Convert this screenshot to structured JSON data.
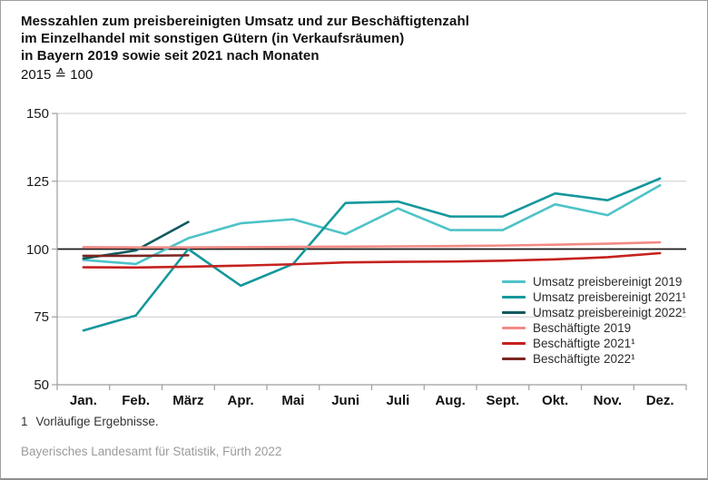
{
  "header": {
    "title_line1": "Messzahlen zum preisbereinigten Umsatz und zur Beschäftigtenzahl",
    "title_line2": "im Einzelhandel mit sonstigen Gütern (in Verkaufsräumen)",
    "title_line3": "in Bayern 2019 sowie seit 2021 nach Monaten",
    "subtitle": "2015 ≙ 100"
  },
  "chart_data": {
    "type": "line",
    "categories": [
      "Jan.",
      "Feb.",
      "März",
      "Apr.",
      "Mai",
      "Juni",
      "Juli",
      "Aug.",
      "Sept.",
      "Okt.",
      "Nov.",
      "Dez."
    ],
    "series": [
      {
        "name": "Umsatz preisbereinigt 2019",
        "color": "#4ec3c7",
        "values": [
          96,
          94.5,
          104,
          109.5,
          111,
          105.5,
          115,
          107,
          107,
          116.5,
          112.5,
          123.5
        ]
      },
      {
        "name": "Umsatz preisbereinigt 2021¹",
        "color": "#14989c",
        "values": [
          70,
          75.5,
          100,
          86.5,
          94.5,
          117,
          117.5,
          112,
          112,
          120.5,
          118,
          126
        ]
      },
      {
        "name": "Umsatz preisbereinigt 2022¹",
        "color": "#0f5a60",
        "values": [
          96.5,
          99.5,
          110
        ]
      },
      {
        "name": "Beschäftigte 2019",
        "color": "#f28b85",
        "values": [
          100.7,
          100.6,
          100.6,
          100.7,
          100.8,
          100.9,
          101,
          101.1,
          101.3,
          101.6,
          102,
          102.5
        ]
      },
      {
        "name": "Beschäftigte 2021¹",
        "color": "#c5211f",
        "values": [
          93.3,
          93.2,
          93.5,
          93.9,
          94.4,
          95.1,
          95.3,
          95.4,
          95.7,
          96.2,
          97,
          98.5
        ]
      },
      {
        "name": "Beschäftigte 2022¹",
        "color": "#7c2622",
        "values": [
          97.5,
          97.5,
          97.7
        ]
      }
    ],
    "title": "Messzahlen zum preisbereinigten Umsatz und zur Beschäftigtenzahl im Einzelhandel mit sonstigen Gütern (in Verkaufsräumen) in Bayern 2019 sowie seit 2021 nach Monaten",
    "xlabel": "",
    "ylabel": "",
    "ylim": [
      50,
      150
    ],
    "yticks": [
      150,
      125,
      100,
      75,
      50
    ],
    "baseline_value": 100,
    "grid": true,
    "legend_position": "inside-right"
  },
  "colors": {
    "gridline": "#cbcbcb",
    "axis": "#9e9e9e",
    "baseline": "#1a1a1a"
  },
  "footnote": {
    "marker": "1",
    "text": "Vorläufige Ergebnisse."
  },
  "source": "Bayerisches Landesamt für Statistik, Fürth 2022"
}
